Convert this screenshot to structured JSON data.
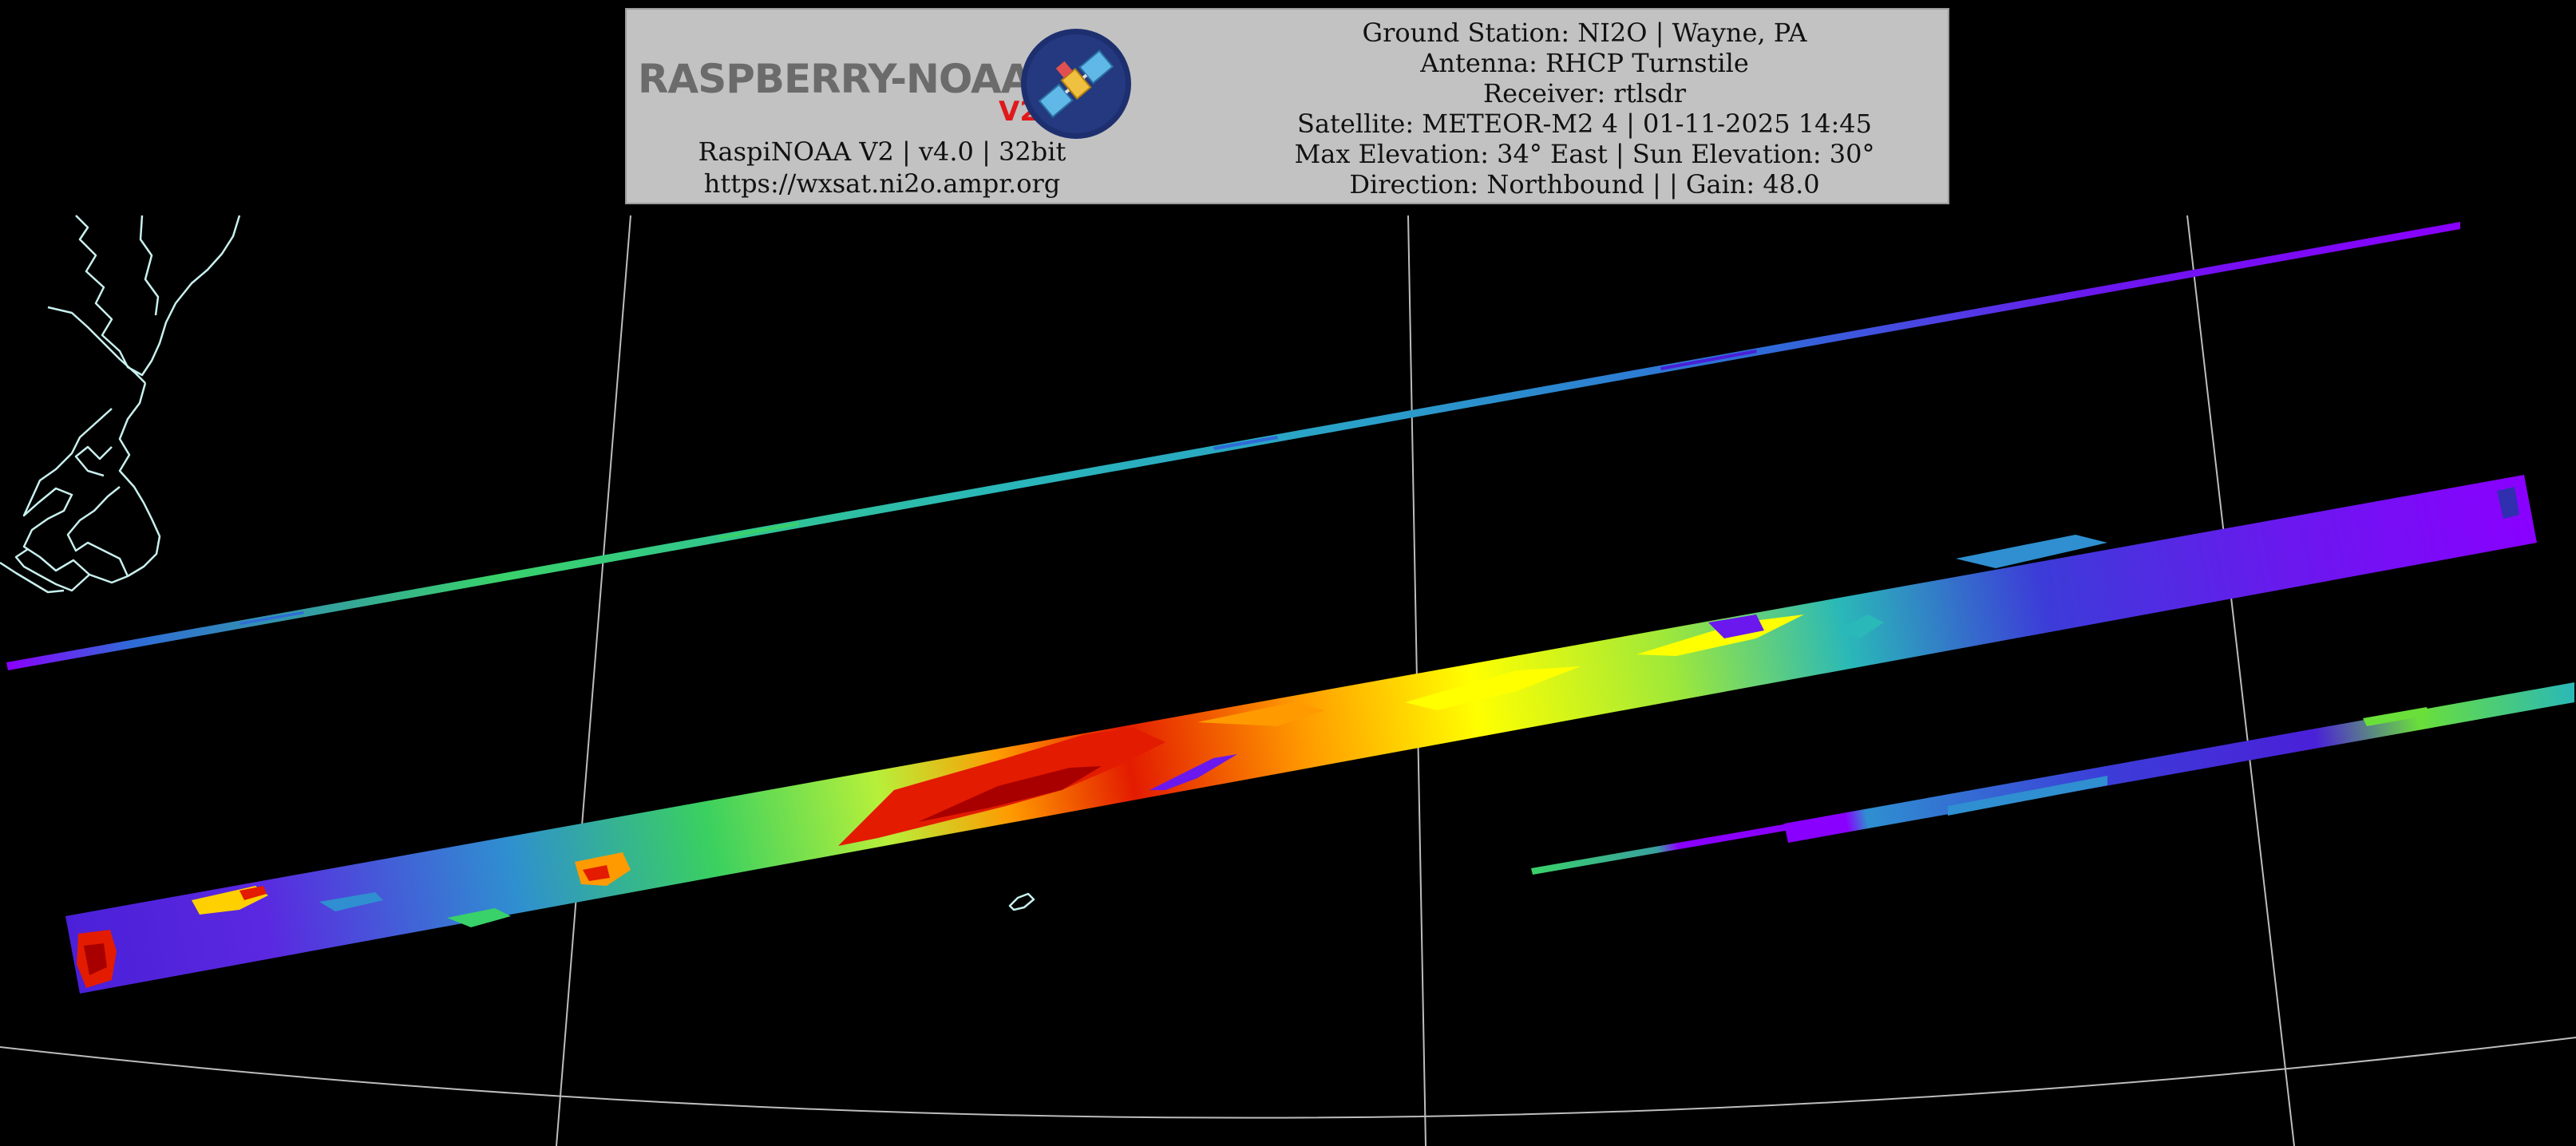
{
  "header": {
    "logo": {
      "name": "RASPBERRY-NOAA",
      "version_badge": "V2"
    },
    "left_lines": [
      "RaspiNOAA V2 | v4.0 | 32bit",
      "https://wxsat.ni2o.ampr.org"
    ],
    "right_lines": [
      "Ground Station: NI2O | Wayne, PA",
      "Antenna: RHCP Turnstile",
      "Receiver: rtlsdr",
      "Satellite: METEOR-M2 4 | 01-11-2025 14:45",
      "Max Elevation: 34° East | Sun Elevation: 30°",
      "Direction: Northbound | | Gain: 48.0"
    ]
  },
  "colors": {
    "background": "#000000",
    "header_bg": "#c2c2c2",
    "graticule": "#bdbdbd",
    "coastline": "#c8f0ee",
    "colormap": [
      "#8a00ff",
      "#4a20d8",
      "#2f6bd8",
      "#2ab8b8",
      "#39d26a",
      "#b7f03a",
      "#ffff00",
      "#ff9a00",
      "#e31b00",
      "#a80000"
    ]
  },
  "icons": [
    "satellite-logo-icon"
  ]
}
